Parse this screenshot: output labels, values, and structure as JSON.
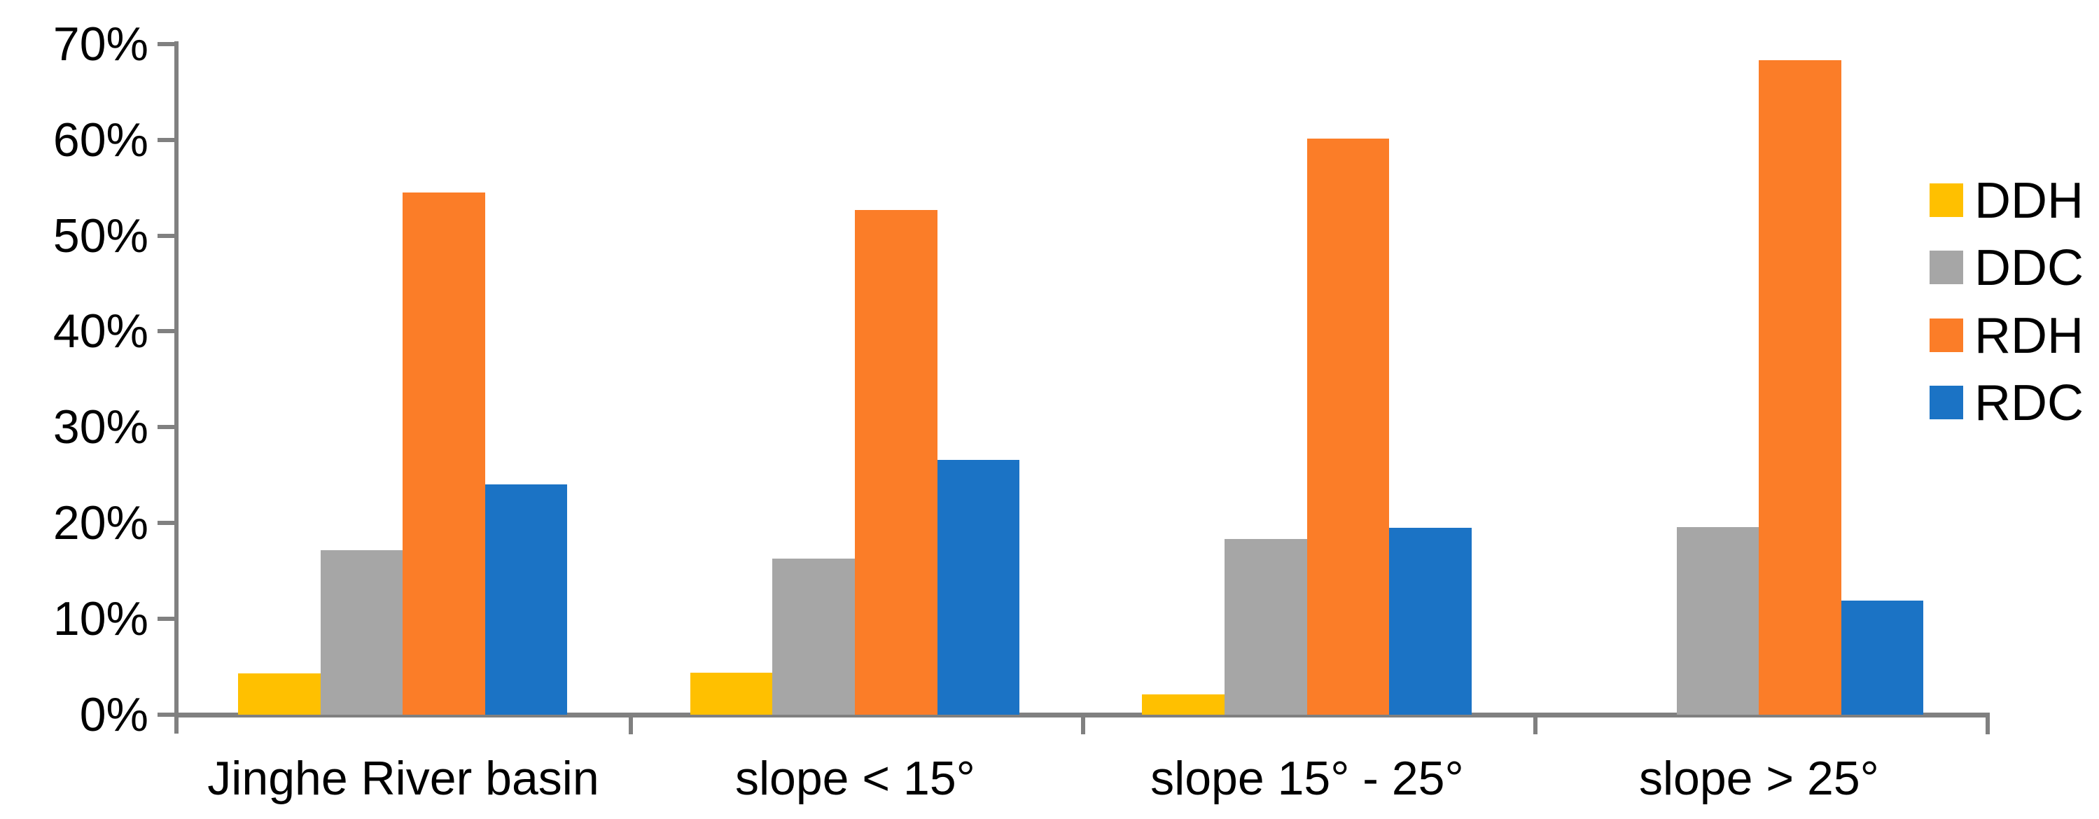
{
  "chart_data": {
    "type": "bar",
    "title": "",
    "categories": [
      "Jinghe River basin",
      "slope < 15°",
      "slope 15° - 25°",
      "slope > 25°"
    ],
    "series": [
      {
        "name": "DDH",
        "color": "#FFC000",
        "values": [
          4.3,
          4.4,
          2.1,
          0
        ]
      },
      {
        "name": "DDC",
        "color": "#A6A6A6",
        "values": [
          17.2,
          16.3,
          18.3,
          19.6
        ]
      },
      {
        "name": "RDH",
        "color": "#FB7D28",
        "values": [
          54.5,
          52.7,
          60.1,
          68.3
        ]
      },
      {
        "name": "RDC",
        "color": "#1B73C5",
        "values": [
          24.0,
          26.6,
          19.5,
          11.9
        ]
      }
    ],
    "y_axis": {
      "min": 0,
      "max": 70,
      "step": 10,
      "unit": "%",
      "tick_labels": [
        "0%",
        "10%",
        "20%",
        "30%",
        "40%",
        "50%",
        "60%",
        "70%"
      ]
    },
    "x_axis": {
      "tick_marks_between_categories": true
    },
    "legend": {
      "position": "right",
      "items": [
        "DDH",
        "DDC",
        "RDH",
        "RDC"
      ]
    },
    "grid": false,
    "axis_color": "#808080",
    "text_color": "#000000",
    "background": "#FFFFFF"
  }
}
